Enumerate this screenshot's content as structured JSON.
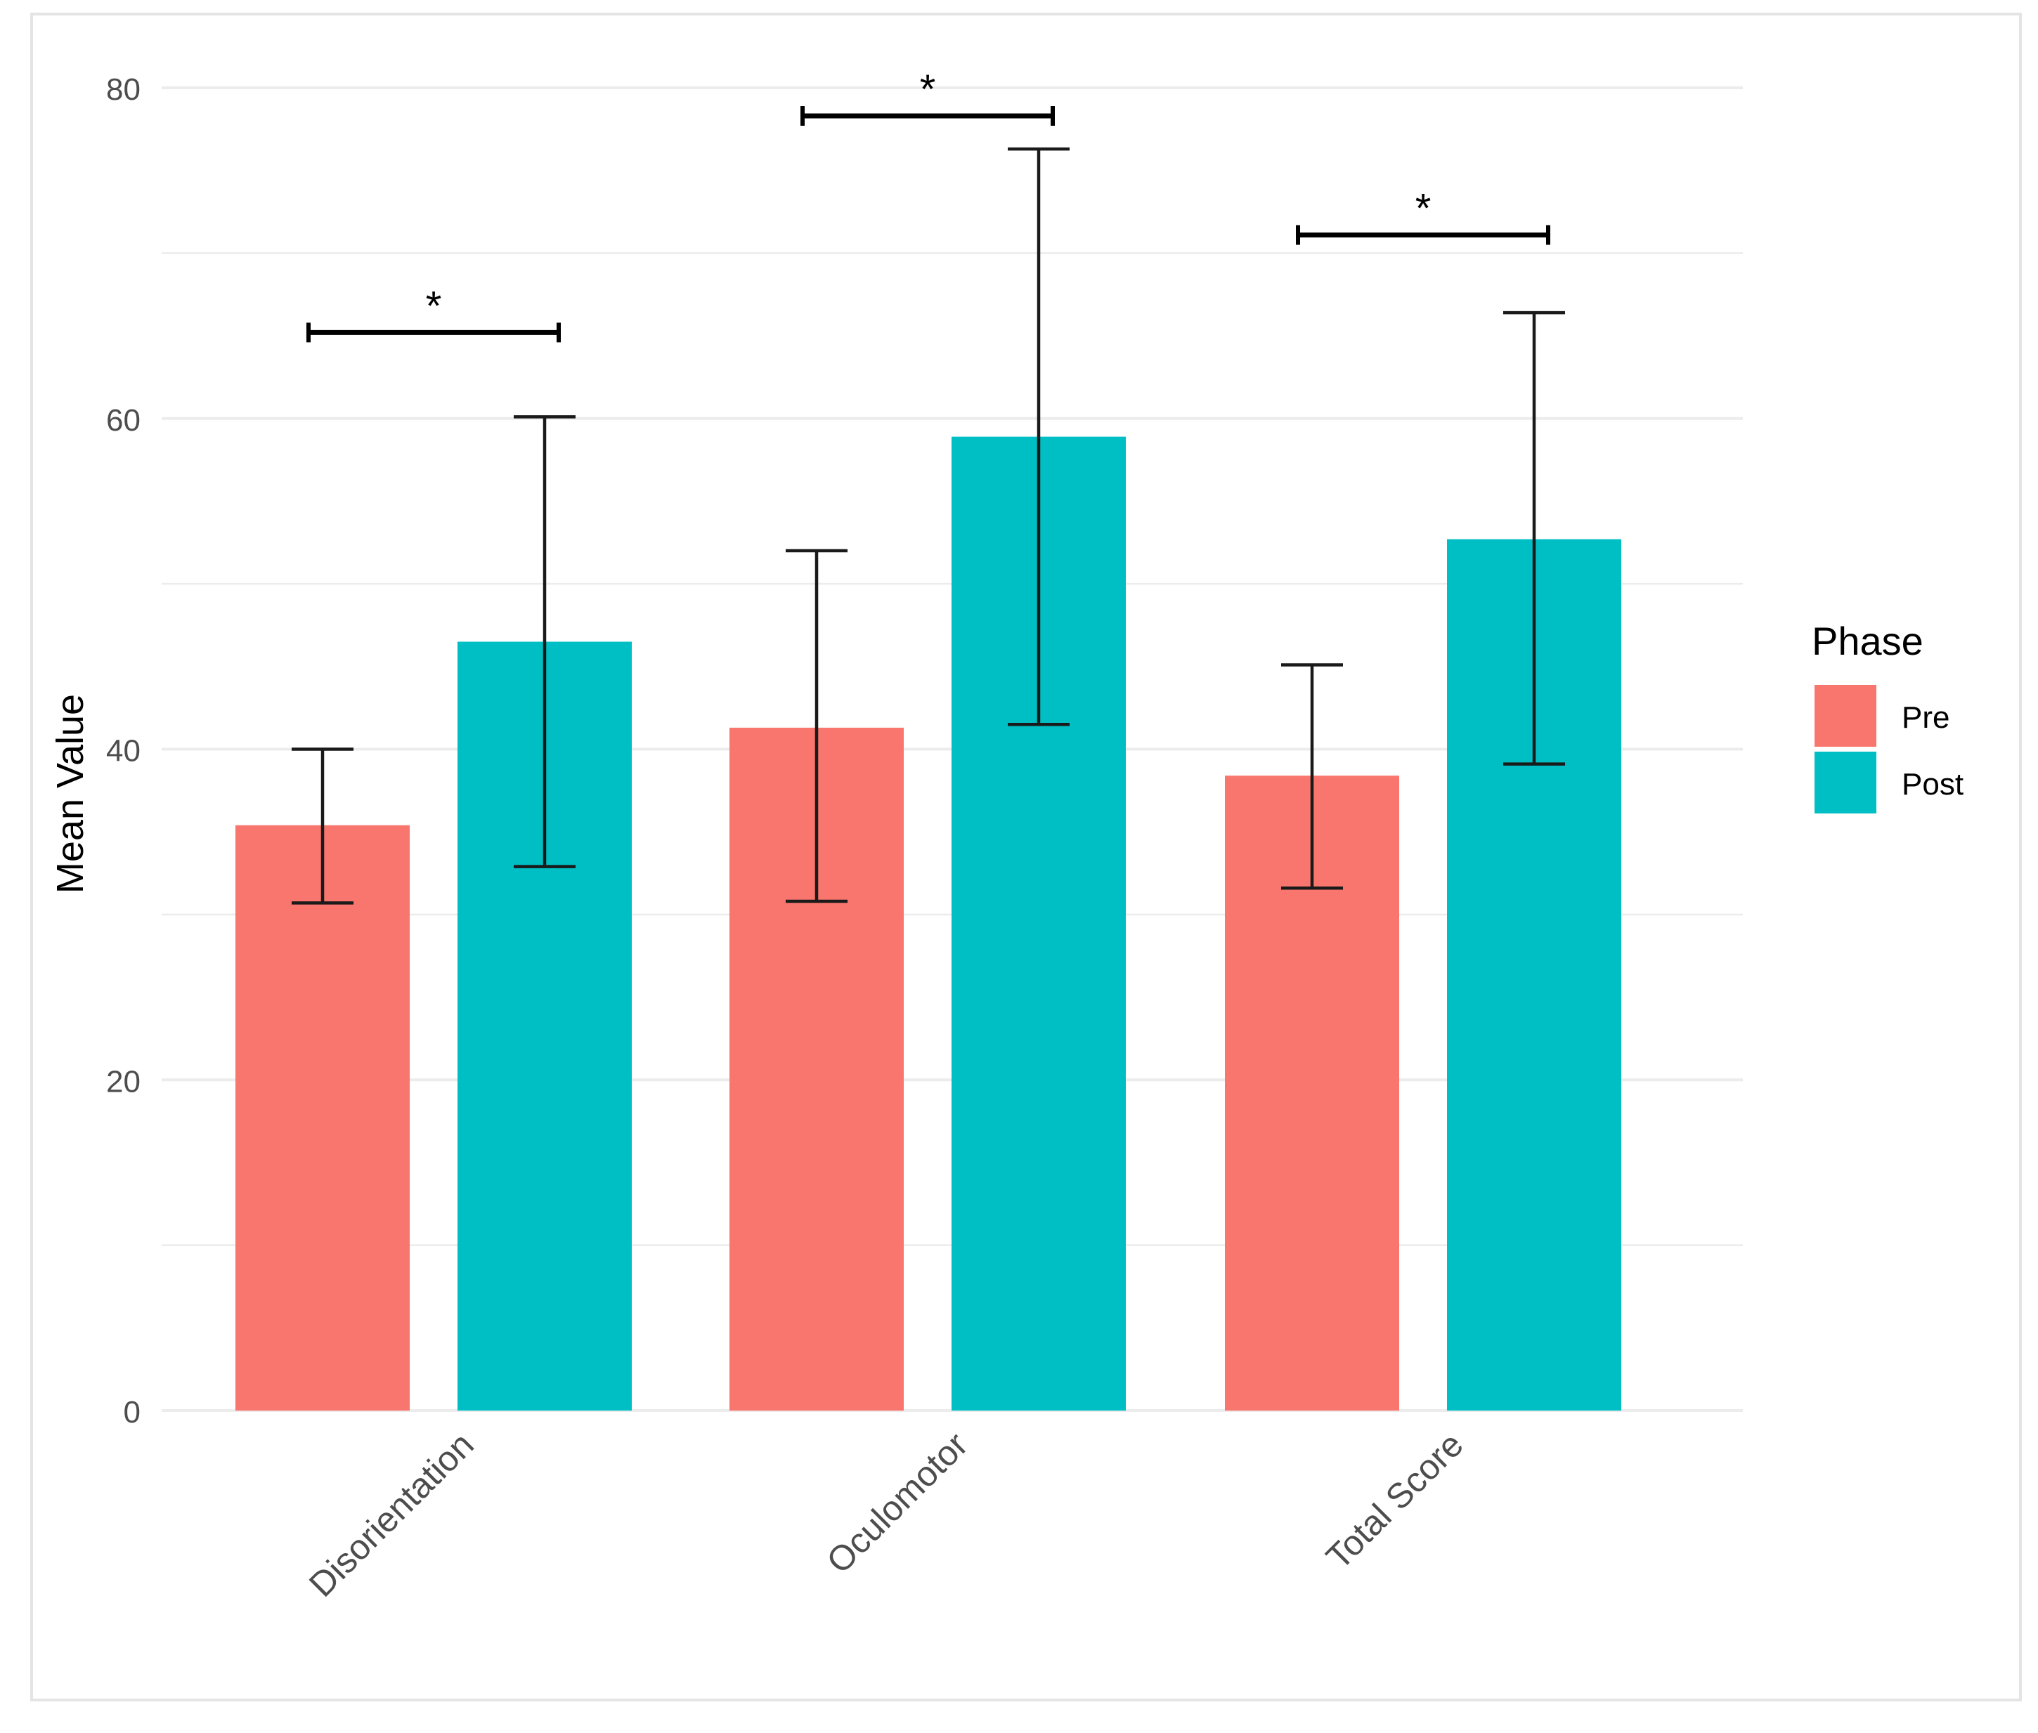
{
  "chart_data": {
    "type": "bar",
    "title": "",
    "xlabel": "",
    "ylabel": "Mean Value",
    "ylim": [
      0,
      80
    ],
    "yticks": [
      0,
      20,
      40,
      60,
      80
    ],
    "grid": true,
    "categories": [
      "Disorientation",
      "Oculomotor",
      "Total Score"
    ],
    "series": [
      {
        "name": "Pre",
        "color": "#F8766D",
        "values": [
          35.4,
          41.3,
          38.4
        ],
        "error_low": [
          30.7,
          30.8,
          31.6
        ],
        "error_high": [
          40.0,
          52.0,
          45.1
        ]
      },
      {
        "name": "Post",
        "color": "#00BFC4",
        "values": [
          46.5,
          58.9,
          52.7
        ],
        "error_low": [
          32.9,
          41.5,
          39.1
        ],
        "error_high": [
          60.1,
          76.3,
          66.4
        ]
      }
    ],
    "significance": [
      {
        "category": "Disorientation",
        "level": 65.2,
        "label": "*"
      },
      {
        "category": "Oculomotor",
        "level": 78.3,
        "label": "*"
      },
      {
        "category": "Total Score",
        "level": 71.1,
        "label": "*"
      }
    ],
    "legend": {
      "title": "Phase",
      "position": "right"
    }
  }
}
